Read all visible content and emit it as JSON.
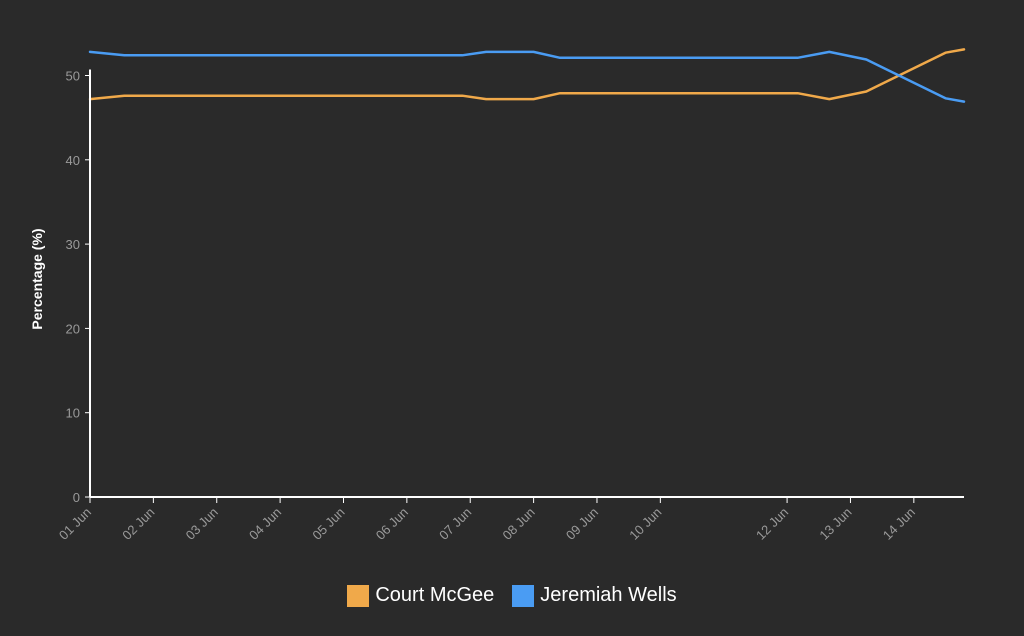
{
  "chart_data": {
    "type": "line",
    "ylabel": "Percentage (%)",
    "xlabel": "",
    "ylim": [
      0,
      53.5
    ],
    "xlim": [
      "2023-06-01",
      "2023-06-14T19:00"
    ],
    "yticks": [
      0,
      10,
      20,
      30,
      40,
      50
    ],
    "xticks": [
      {
        "date": "2023-06-01",
        "label": "01 Jun"
      },
      {
        "date": "2023-06-02",
        "label": "02 Jun"
      },
      {
        "date": "2023-06-03",
        "label": "03 Jun"
      },
      {
        "date": "2023-06-04",
        "label": "04 Jun"
      },
      {
        "date": "2023-06-05",
        "label": "05 Jun"
      },
      {
        "date": "2023-06-06",
        "label": "06 Jun"
      },
      {
        "date": "2023-06-07",
        "label": "07 Jun"
      },
      {
        "date": "2023-06-08",
        "label": "08 Jun"
      },
      {
        "date": "2023-06-09",
        "label": "09 Jun"
      },
      {
        "date": "2023-06-10",
        "label": "10 Jun"
      },
      {
        "date": "2023-06-12",
        "label": "12 Jun"
      },
      {
        "date": "2023-06-13",
        "label": "13 Jun"
      },
      {
        "date": "2023-06-14",
        "label": "14 Jun"
      }
    ],
    "grid": false,
    "legend_position": "bottom",
    "series": [
      {
        "name": "Court McGee",
        "color": "#f0a94a",
        "points": [
          {
            "x": "2023-06-01T00:00",
            "y": 47.2
          },
          {
            "x": "2023-06-01T13:00",
            "y": 47.6
          },
          {
            "x": "2023-06-06T21:00",
            "y": 47.6
          },
          {
            "x": "2023-06-07T06:00",
            "y": 47.2
          },
          {
            "x": "2023-06-08T00:00",
            "y": 47.2
          },
          {
            "x": "2023-06-08T10:00",
            "y": 47.9
          },
          {
            "x": "2023-06-12T04:00",
            "y": 47.9
          },
          {
            "x": "2023-06-12T16:00",
            "y": 47.2
          },
          {
            "x": "2023-06-13T06:00",
            "y": 48.1
          },
          {
            "x": "2023-06-14T12:00",
            "y": 52.7
          },
          {
            "x": "2023-06-14T19:00",
            "y": 53.1
          }
        ]
      },
      {
        "name": "Jeremiah Wells",
        "color": "#4a9cf3",
        "points": [
          {
            "x": "2023-06-01T00:00",
            "y": 52.8
          },
          {
            "x": "2023-06-01T13:00",
            "y": 52.4
          },
          {
            "x": "2023-06-06T21:00",
            "y": 52.4
          },
          {
            "x": "2023-06-07T06:00",
            "y": 52.8
          },
          {
            "x": "2023-06-08T00:00",
            "y": 52.8
          },
          {
            "x": "2023-06-08T10:00",
            "y": 52.1
          },
          {
            "x": "2023-06-12T04:00",
            "y": 52.1
          },
          {
            "x": "2023-06-12T16:00",
            "y": 52.8
          },
          {
            "x": "2023-06-13T06:00",
            "y": 51.9
          },
          {
            "x": "2023-06-14T12:00",
            "y": 47.3
          },
          {
            "x": "2023-06-14T19:00",
            "y": 46.9
          }
        ]
      }
    ]
  }
}
